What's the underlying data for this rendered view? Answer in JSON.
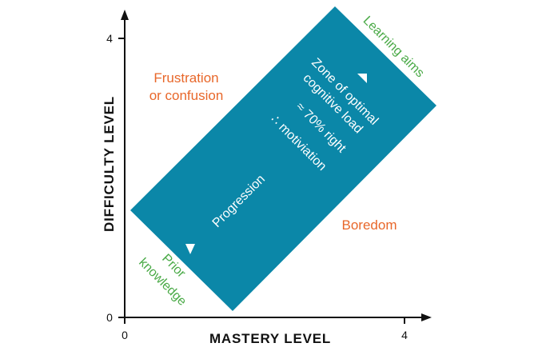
{
  "axes": {
    "x_label": "MASTERY LEVEL",
    "y_label": "DIFFICULTY LEVEL",
    "x_ticks": [
      "0",
      "4"
    ],
    "y_ticks": [
      "0",
      "4"
    ]
  },
  "zone": {
    "color": "#0b87a8",
    "lines": [
      "Zone of optimal",
      "cognitive load",
      "≈ 70% right",
      "∴ motiviation"
    ],
    "arrow_label": "Progression"
  },
  "regions": {
    "frustration": [
      "Frustration",
      "or confusion"
    ],
    "boredom": "Boredom",
    "color": "#e8672a"
  },
  "endpoints": {
    "start": [
      "Prior",
      "knowledge"
    ],
    "end": "Learning aims",
    "color": "#4aaa47"
  }
}
